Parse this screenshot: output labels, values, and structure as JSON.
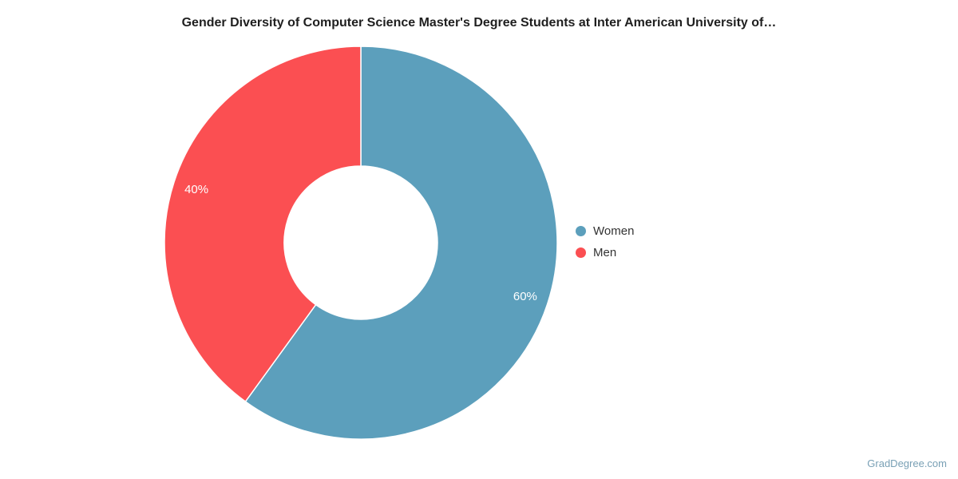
{
  "chart_data": {
    "type": "pie",
    "subtype": "donut",
    "title": "Gender Diversity of Computer Science Master's Degree Students at Inter American University of…",
    "series": [
      {
        "name": "Women",
        "value": 60,
        "label": "60%",
        "color": "#5C9FBC"
      },
      {
        "name": "Men",
        "value": 40,
        "label": "40%",
        "color": "#FB4F52"
      }
    ],
    "start_angle_deg_clockwise_from_top": 0,
    "direction": "clockwise",
    "inner_radius_ratio": 0.39,
    "slice_label_radius_ratio": 0.88,
    "slice_label_color": "#FFFFFF",
    "slice_border_color": "#FFFFFF",
    "legend_position": "right"
  },
  "footer": {
    "watermark": "GradDegree.com"
  }
}
